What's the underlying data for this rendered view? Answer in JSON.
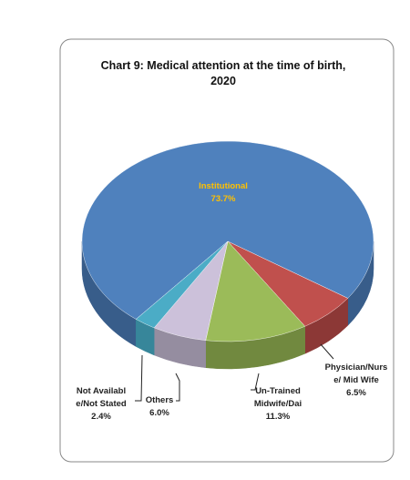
{
  "chart_data": {
    "type": "pie3d",
    "title": "Chart 9: Medical attention at the time of birth, 2020",
    "categories": [
      "Institutional",
      "Physician/Nurse/ Mid Wife",
      "Un-Trained Midwife/Dai",
      "Others",
      "Not Available/Not Stated"
    ],
    "values": [
      73.7,
      6.5,
      11.3,
      6.0,
      2.4
    ],
    "value_labels": [
      "73.7%",
      "6.5%",
      "11.3%",
      "6.0%",
      "2.4%"
    ],
    "colors": [
      "#4f81bd",
      "#c0504d",
      "#9bbb59",
      "#ccc1da",
      "#4bacc6"
    ],
    "side_colors": [
      "#385d8a",
      "#8c3836",
      "#71893f",
      "#958da0",
      "#37869a"
    ]
  }
}
